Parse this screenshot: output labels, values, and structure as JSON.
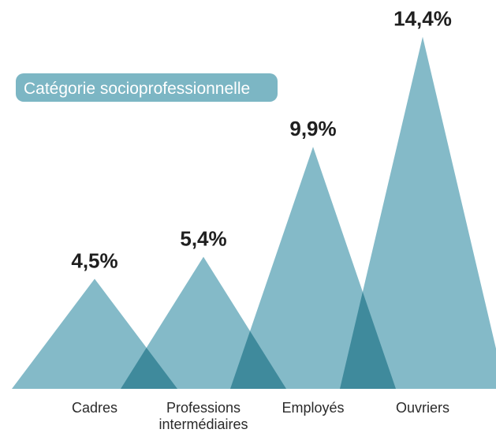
{
  "chart_data": {
    "type": "area",
    "title": "Catégorie socioprofessionnelle",
    "categories": [
      [
        "Cadres"
      ],
      [
        "Professions",
        "intermédiaires"
      ],
      [
        "Employés"
      ],
      [
        "Ouvriers"
      ]
    ],
    "values": [
      4.5,
      5.4,
      9.9,
      14.4
    ],
    "value_labels": [
      "4,5%",
      "5,4%",
      "9,9%",
      "14,4%"
    ],
    "unit": "%",
    "colors": {
      "peak": "#84bac8",
      "overlap": "#3f8a9c",
      "badge": "#7cb6c4",
      "badge_text": "#ffffff",
      "value_text": "#1f1f1f",
      "label_text": "#2a2a2a"
    }
  }
}
